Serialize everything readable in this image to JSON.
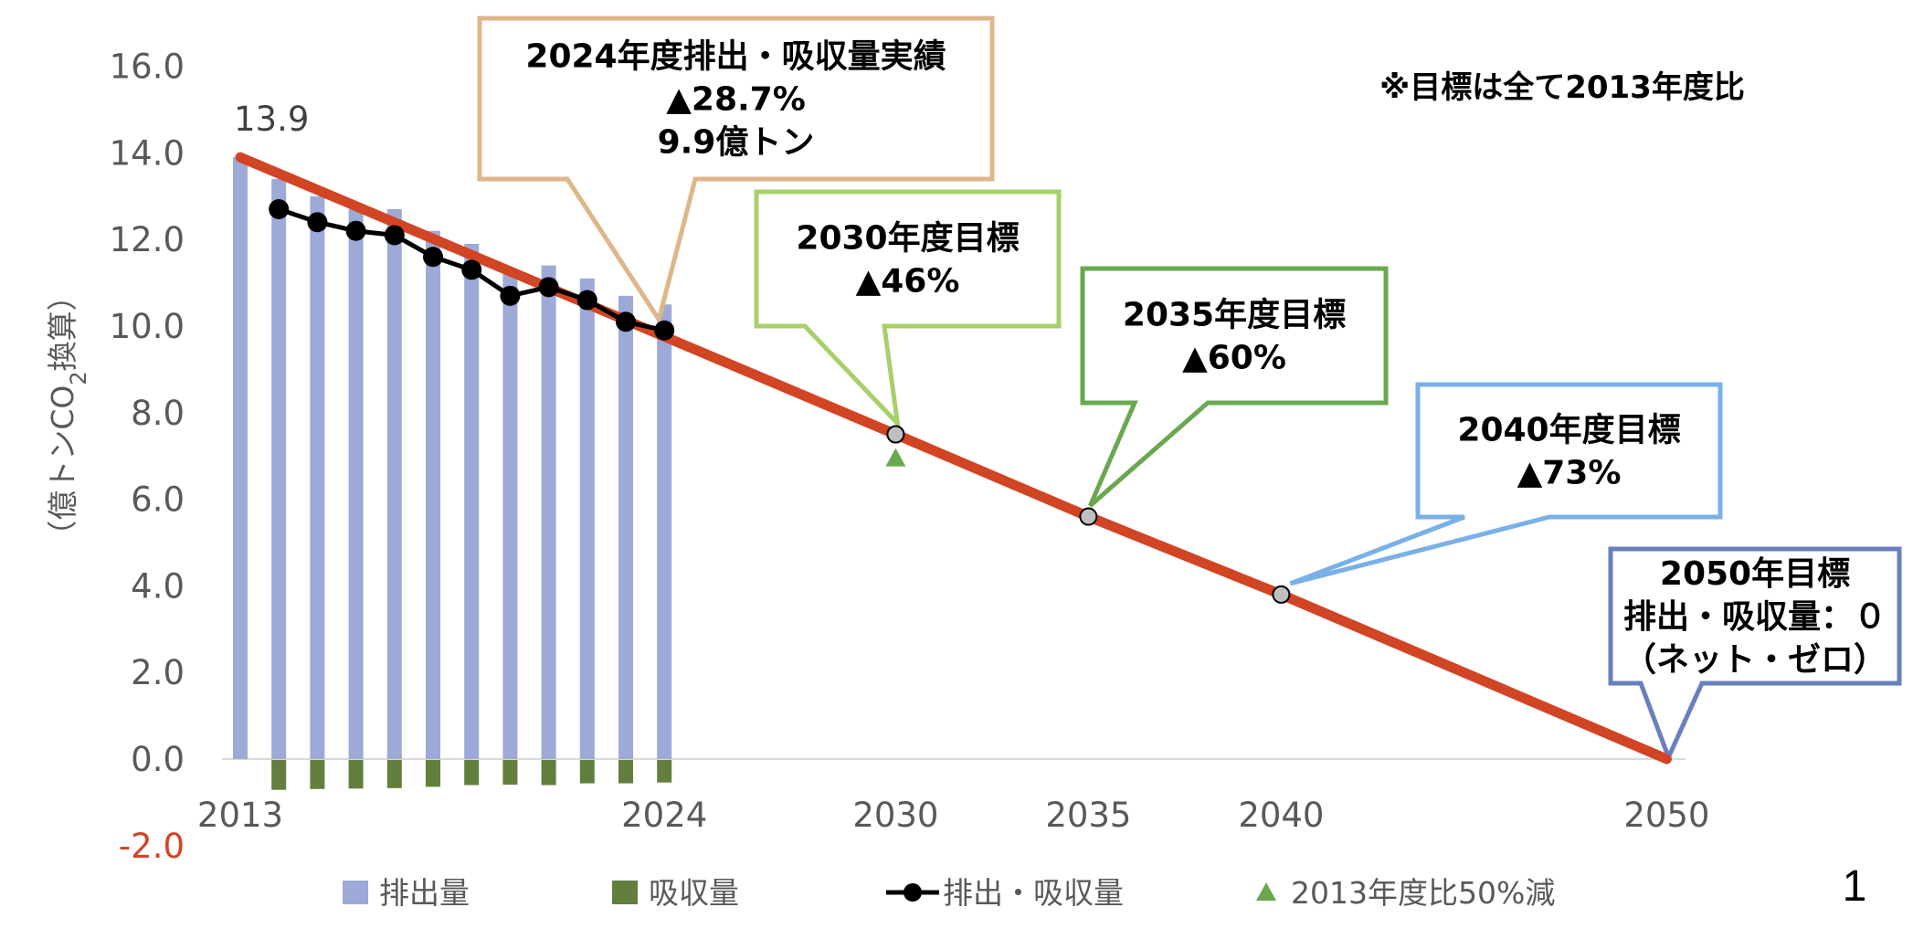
{
  "chart_data": {
    "type": "bar",
    "title": "",
    "ylabel": "（億トンCO2換算）",
    "ylabel_main": "（億トンCO",
    "ylabel_sub": "2",
    "ylabel_tail": "換算）",
    "ylim": [
      -2.0,
      16.0
    ],
    "yticks": [
      "16.0",
      "14.0",
      "12.0",
      "10.0",
      "8.0",
      "6.0",
      "4.0",
      "2.0",
      "0.0",
      "-2.0"
    ],
    "ytick_values": [
      16,
      14,
      12,
      10,
      8,
      6,
      4,
      2,
      0,
      -2
    ],
    "xticks": [
      "2013",
      "2024",
      "2030",
      "2035",
      "2040",
      "2050"
    ],
    "xtick_values": [
      2013,
      2024,
      2030,
      2035,
      2040,
      2050
    ],
    "xlim": [
      2013,
      2050
    ],
    "grid": false,
    "legend_position": "bottom",
    "years": [
      2013,
      2014,
      2015,
      2016,
      2017,
      2018,
      2019,
      2020,
      2021,
      2022,
      2023,
      2024
    ],
    "series": [
      {
        "name": "排出量",
        "kind": "bar",
        "color": "#9daad8",
        "values": [
          13.9,
          13.4,
          13.0,
          12.7,
          12.7,
          12.2,
          11.9,
          11.2,
          11.4,
          11.1,
          10.7,
          10.5
        ]
      },
      {
        "name": "吸収量",
        "kind": "bar",
        "color": "#627f3e",
        "values": [
          null,
          -0.69,
          -0.67,
          -0.66,
          -0.65,
          -0.62,
          -0.58,
          -0.57,
          -0.58,
          -0.54,
          -0.54,
          -0.52
        ]
      },
      {
        "name": "排出・吸収量",
        "kind": "line",
        "color": "#000000",
        "values": [
          null,
          12.7,
          12.4,
          12.2,
          12.1,
          11.6,
          11.3,
          10.7,
          10.9,
          10.6,
          10.1,
          9.9
        ]
      },
      {
        "name": "2013年度比50%減",
        "kind": "marker",
        "color": "#6aa84f",
        "x": [
          2030
        ],
        "values": [
          6.95
        ]
      }
    ],
    "target_path": {
      "name": "target-path",
      "color": "#d14424",
      "x": [
        2013,
        2030,
        2035,
        2040,
        2050
      ],
      "values": [
        13.9,
        7.5,
        5.6,
        3.8,
        0.0
      ]
    },
    "target_markers": {
      "x": [
        2030,
        2035,
        2040
      ],
      "values": [
        7.5,
        5.6,
        3.8
      ],
      "color": "#bfbfbf"
    },
    "data_labels": [
      {
        "x": 2013,
        "value": 13.9,
        "text": "13.9"
      }
    ],
    "legend": [
      {
        "label": "排出量",
        "swatch": "bar",
        "color": "#9daad8"
      },
      {
        "label": "吸収量",
        "swatch": "bar",
        "color": "#627f3e"
      },
      {
        "label": "排出・吸収量",
        "swatch": "line-marker",
        "color": "#000000"
      },
      {
        "label": "2013年度比50%減",
        "swatch": "triangle",
        "color": "#6aa84f"
      }
    ],
    "annotations": {
      "note": "※目標は全て2013年度比",
      "callouts": [
        {
          "id": "2024",
          "lines": [
            "2024年度排出・吸収量実績",
            "▲28.7%",
            "9.9億トン"
          ],
          "color": "#dfb68a",
          "x": 2024,
          "value": 9.9
        },
        {
          "id": "2030",
          "lines": [
            "2030年度目標",
            "▲46%"
          ],
          "color": "#a8d06a",
          "x": 2030,
          "value": 7.5
        },
        {
          "id": "2035",
          "lines": [
            "2035年度目標",
            "▲60%"
          ],
          "color": "#6aa84f",
          "x": 2035,
          "value": 5.6
        },
        {
          "id": "2040",
          "lines": [
            "2040年度目標",
            "▲73%"
          ],
          "color": "#7ab0e8",
          "x": 2040,
          "value": 3.8
        },
        {
          "id": "2050",
          "lines": [
            "2050年目標",
            "排出・吸収量：０",
            "（ネット・ゼロ）"
          ],
          "color": "#6a7fbd",
          "x": 2050,
          "value": 0.0
        }
      ]
    }
  },
  "page_number": "1"
}
